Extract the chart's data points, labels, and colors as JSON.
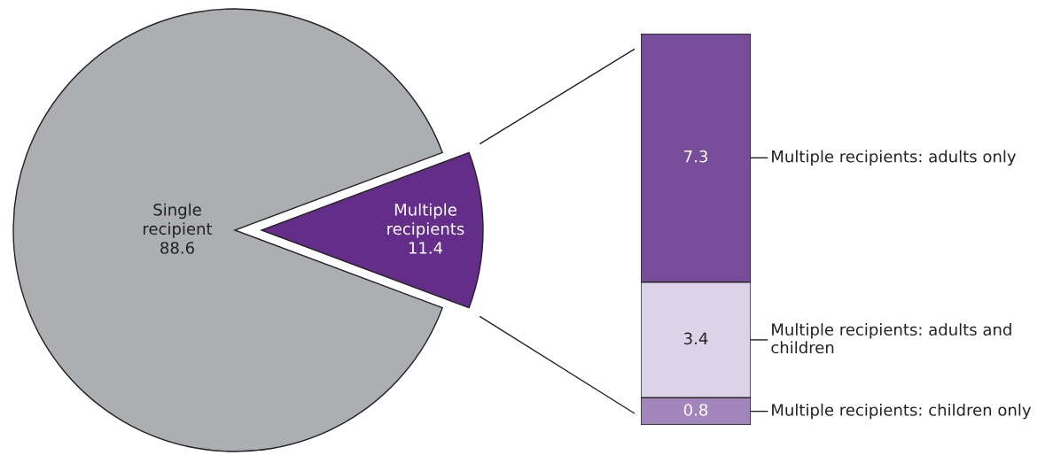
{
  "chart_data": [
    {
      "type": "pie",
      "categories": [
        "Single recipient",
        "Multiple recipients"
      ],
      "values": [
        88.6,
        11.4
      ],
      "colors": [
        "#adaeb2",
        "#652d8a"
      ],
      "data_labels": true
    },
    {
      "type": "bar",
      "stacked": true,
      "categories": [
        null
      ],
      "data_labels": true,
      "legend": "right",
      "series": [
        {
          "name": "Multiple recipients: children only",
          "color": "#a185bb",
          "values": [
            0.8
          ]
        },
        {
          "name": "Multiple recipients: adults and children",
          "color": "#ddd3e8",
          "values": [
            3.4
          ]
        },
        {
          "name": "Multiple recipients: adults only",
          "color": "#774c98",
          "values": [
            7.3
          ]
        }
      ]
    }
  ]
}
